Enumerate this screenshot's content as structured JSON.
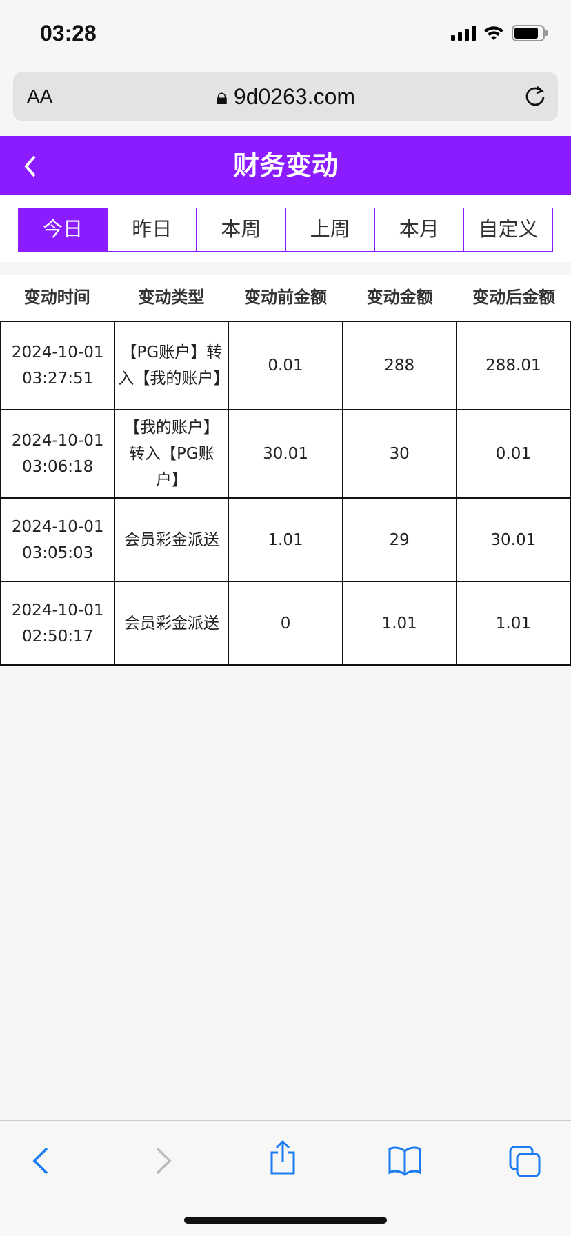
{
  "status_bar": {
    "time": "03:28"
  },
  "browser": {
    "text_size": "AA",
    "url": "9d0263.com"
  },
  "header": {
    "title": "财务变动"
  },
  "tabs": [
    {
      "label": "今日",
      "active": true
    },
    {
      "label": "昨日"
    },
    {
      "label": "本周"
    },
    {
      "label": "上周"
    },
    {
      "label": "本月"
    },
    {
      "label": "自定义"
    }
  ],
  "table": {
    "columns": [
      "变动时间",
      "变动类型",
      "变动前金额",
      "变动金额",
      "变动后金额"
    ],
    "rows": [
      {
        "date": "2024-10-01",
        "time": "03:27:51",
        "type": "【PG账户】转入【我的账户】",
        "before": "0.01",
        "amount": "288",
        "after": "288.01"
      },
      {
        "date": "2024-10-01",
        "time": "03:06:18",
        "type": "【我的账户】转入【PG账户】",
        "before": "30.01",
        "amount": "30",
        "after": "0.01"
      },
      {
        "date": "2024-10-01",
        "time": "03:05:03",
        "type": "会员彩金派送",
        "before": "1.01",
        "amount": "29",
        "after": "30.01"
      },
      {
        "date": "2024-10-01",
        "time": "02:50:17",
        "type": "会员彩金派送",
        "before": "0",
        "amount": "1.01",
        "after": "1.01"
      }
    ]
  },
  "colors": {
    "accent": "#8b1cff",
    "ios_blue": "#1a7cf0"
  }
}
